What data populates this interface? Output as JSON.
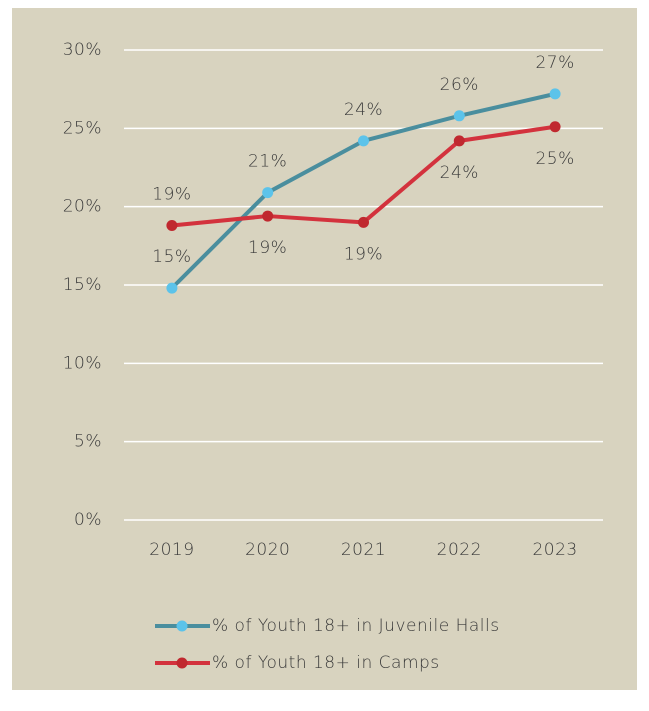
{
  "chart_data": {
    "type": "line",
    "categories": [
      "2019",
      "2020",
      "2021",
      "2022",
      "2023"
    ],
    "series": [
      {
        "name": "% of Youth 18+ in Juvenile Halls",
        "color": "#4a8e9e",
        "marker_color": "#5cc3ea",
        "values": [
          14.8,
          20.9,
          24.2,
          25.8,
          27.2
        ],
        "value_labels": [
          "15%",
          "21%",
          "24%",
          "26%",
          "27%"
        ]
      },
      {
        "name": "% of Youth 18+ in Camps",
        "color": "#d3323d",
        "marker_color": "#c0282f",
        "values": [
          18.8,
          19.4,
          19.0,
          24.2,
          25.1
        ],
        "value_labels": [
          "19%",
          "19%",
          "19%",
          "24%",
          "25%"
        ]
      }
    ],
    "ylim": [
      0,
      30
    ],
    "yticks": [
      {
        "value": 0,
        "label": "0%"
      },
      {
        "value": 5,
        "label": "5%"
      },
      {
        "value": 10,
        "label": "10%"
      },
      {
        "value": 15,
        "label": "15%"
      },
      {
        "value": 20,
        "label": "20%"
      },
      {
        "value": 25,
        "label": "25%"
      },
      {
        "value": 30,
        "label": "30%"
      }
    ],
    "grid": true
  }
}
